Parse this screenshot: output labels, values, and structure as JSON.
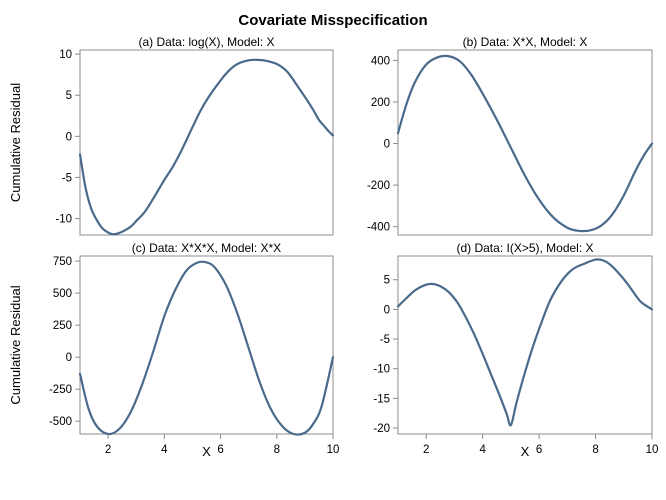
{
  "figure_title": "Covariate Misspecification",
  "colors": {
    "series": "#4a6a8c",
    "frame": "#8c8c8c"
  },
  "chart_data": [
    {
      "type": "line",
      "title": "(a) Data: log(X), Model: X",
      "ylabel": "Cumulative Residual",
      "xlabel": "",
      "xlim": [
        1,
        10
      ],
      "ylim": [
        -12,
        10.5
      ],
      "xticks": [],
      "yticks": [
        -10,
        -5,
        0,
        5,
        10
      ],
      "x": [
        1,
        1.2,
        1.4,
        1.6,
        1.8,
        2,
        2.2,
        2.5,
        2.8,
        3,
        3.3,
        3.6,
        4,
        4.3,
        4.6,
        5,
        5.3,
        5.6,
        6,
        6.3,
        6.6,
        7,
        7.3,
        7.6,
        8,
        8.3,
        8.5,
        8.7,
        9,
        9.3,
        9.5,
        9.7,
        9.85,
        10
      ],
      "y": [
        -2.2,
        -6.3,
        -8.8,
        -10.2,
        -11.2,
        -11.7,
        -11.9,
        -11.6,
        -11.0,
        -10.3,
        -9.2,
        -7.6,
        -5.3,
        -3.7,
        -1.8,
        1.1,
        3.2,
        4.9,
        6.8,
        8.0,
        8.8,
        9.25,
        9.3,
        9.2,
        8.8,
        8.1,
        7.3,
        6.3,
        4.8,
        3.2,
        2.0,
        1.2,
        0.6,
        0.1
      ],
      "grid": false
    },
    {
      "type": "line",
      "title": "(b) Data: X*X, Model: X",
      "ylabel": "",
      "xlabel": "",
      "xlim": [
        1,
        10
      ],
      "ylim": [
        -440,
        450
      ],
      "xticks": [],
      "yticks": [
        -400,
        -200,
        0,
        200,
        400
      ],
      "x": [
        1,
        1.3,
        1.6,
        2,
        2.4,
        2.8,
        3.2,
        3.6,
        4,
        4.5,
        5,
        5.5,
        6,
        6.5,
        7,
        7.4,
        7.8,
        8.2,
        8.6,
        9,
        9.4,
        9.7,
        10
      ],
      "y": [
        50,
        190,
        295,
        380,
        415,
        420,
        395,
        330,
        240,
        115,
        -20,
        -155,
        -270,
        -355,
        -405,
        -420,
        -418,
        -395,
        -340,
        -250,
        -135,
        -60,
        0
      ],
      "grid": false
    },
    {
      "type": "line",
      "title": "(c) Data: X*X*X, Model: X*X",
      "ylabel": "Cumulative Residual",
      "xlabel": "X",
      "xlim": [
        1,
        10
      ],
      "ylim": [
        -600,
        790
      ],
      "xticks": [
        2,
        4,
        6,
        8,
        10
      ],
      "yticks": [
        -500,
        -250,
        0,
        250,
        500,
        750
      ],
      "x": [
        1,
        1.3,
        1.6,
        2,
        2.4,
        2.8,
        3.2,
        3.6,
        4,
        4.4,
        4.8,
        5.2,
        5.5,
        5.8,
        6.2,
        6.6,
        7,
        7.4,
        7.8,
        8.2,
        8.6,
        9,
        9.3,
        9.6,
        10
      ],
      "y": [
        -130,
        -400,
        -540,
        -600,
        -560,
        -430,
        -220,
        40,
        320,
        530,
        680,
        740,
        740,
        700,
        560,
        340,
        70,
        -200,
        -410,
        -540,
        -600,
        -590,
        -520,
        -380,
        0
      ],
      "grid": false
    },
    {
      "type": "line",
      "title": "(d) Data: I(X>5), Model: X",
      "ylabel": "",
      "xlabel": "X",
      "xlim": [
        1,
        10
      ],
      "ylim": [
        -21,
        9
      ],
      "xticks": [
        2,
        4,
        6,
        8,
        10
      ],
      "yticks": [
        -20,
        -15,
        -10,
        -5,
        0,
        5
      ],
      "x": [
        1,
        1.3,
        1.6,
        1.9,
        2.2,
        2.5,
        2.8,
        3.1,
        3.4,
        3.7,
        4,
        4.3,
        4.6,
        4.85,
        5,
        5.2,
        5.5,
        5.8,
        6.1,
        6.4,
        6.8,
        7.2,
        7.6,
        8,
        8.3,
        8.6,
        9,
        9.3,
        9.6,
        10
      ],
      "y": [
        0.5,
        1.9,
        3.2,
        4.0,
        4.3,
        3.9,
        2.9,
        1.2,
        -1.3,
        -4.2,
        -7.5,
        -11.0,
        -14.5,
        -17.6,
        -19.5,
        -15.7,
        -10.6,
        -6.0,
        -2.0,
        1.6,
        4.8,
        6.8,
        7.7,
        8.4,
        8.2,
        7.2,
        5.1,
        3.2,
        1.3,
        0.0
      ],
      "grid": false
    }
  ]
}
